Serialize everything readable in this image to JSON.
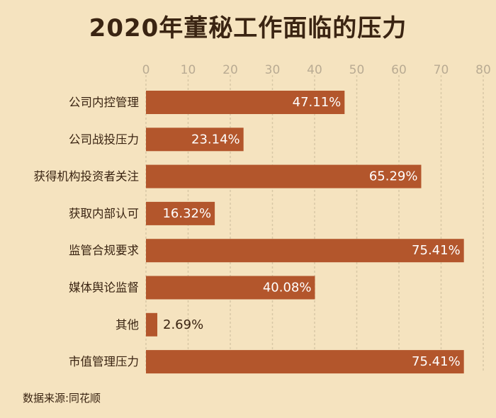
{
  "chart_data": {
    "type": "bar",
    "orientation": "horizontal",
    "title": "2020年董秘工作面临的压力",
    "categories": [
      "公司内控管理",
      "公司战投压力",
      "获得机构投资者关注",
      "获取内部认可",
      "监管合规要求",
      "媒体舆论监督",
      "其他",
      "市值管理压力"
    ],
    "values": [
      47.11,
      23.14,
      65.29,
      16.32,
      75.41,
      40.08,
      2.69,
      75.41
    ],
    "value_labels": [
      "47.11%",
      "23.14%",
      "65.29%",
      "16.32%",
      "75.41%",
      "40.08%",
      "2.69%",
      "75.41%"
    ],
    "x_ticks": [
      0,
      10,
      20,
      30,
      40,
      50,
      60,
      70,
      80
    ],
    "xlim": [
      0,
      80
    ],
    "xlabel": "",
    "ylabel": "",
    "grid": true,
    "axis_position": "top"
  },
  "source_text": "数据来源:同花顺",
  "colors": {
    "background": "#f5e3bf",
    "bar": "#b3562c",
    "grid": "#d8c8a6",
    "tick": "#b9ab93",
    "text": "#3a2412",
    "label_inside": "#ffffff"
  }
}
